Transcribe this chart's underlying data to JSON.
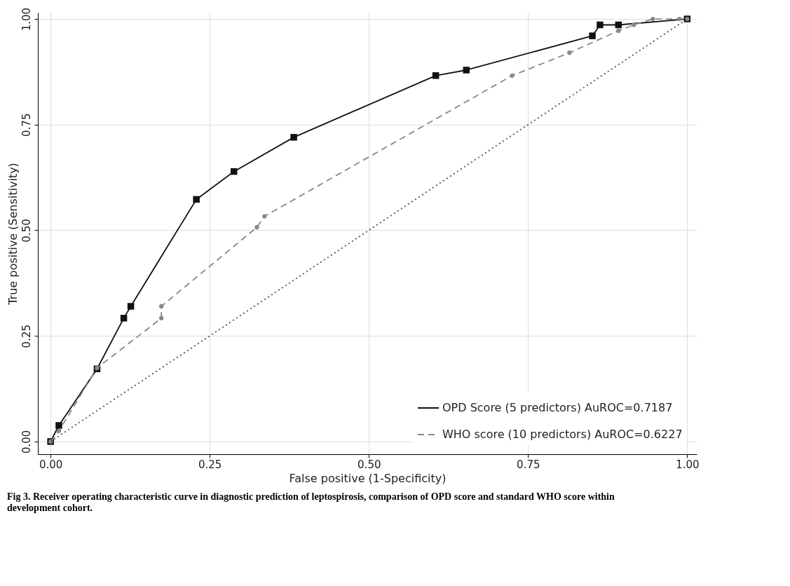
{
  "chart_data": {
    "type": "line",
    "xlabel": "False positive (1-Specificity)",
    "ylabel": "True positive (Sensitivity)",
    "xlim": [
      -0.02,
      1.015
    ],
    "ylim": [
      -0.03,
      1.015
    ],
    "xticks": [
      {
        "value": 0,
        "label": "0.00"
      },
      {
        "value": 0.25,
        "label": "0.25"
      },
      {
        "value": 0.5,
        "label": "0.50"
      },
      {
        "value": 0.75,
        "label": "0.75"
      },
      {
        "value": 1,
        "label": "1.00"
      }
    ],
    "yticks": [
      {
        "value": 0,
        "label": "0.00"
      },
      {
        "value": 0.25,
        "label": "0.25"
      },
      {
        "value": 0.5,
        "label": "0.50"
      },
      {
        "value": 0.75,
        "label": "0.75"
      },
      {
        "value": 1,
        "label": "1.00"
      }
    ],
    "grid": true,
    "legend": "bottom right",
    "series": [
      {
        "name": "OPD Score (5 predictors) AuROC=0.7187",
        "color": "#111111",
        "marker": "square",
        "line_style": "solid",
        "x": [
          0,
          0.013,
          0.073,
          0.115,
          0.126,
          0.229,
          0.288,
          0.382,
          0.605,
          0.653,
          0.851,
          0.863,
          0.892,
          1.0
        ],
        "values": [
          0,
          0.038,
          0.172,
          0.292,
          0.32,
          0.573,
          0.639,
          0.72,
          0.866,
          0.879,
          0.96,
          0.986,
          0.986,
          1.0
        ]
      },
      {
        "name": "WHO score (10 predictors) AuROC=0.6227",
        "color": "#888888",
        "marker": "circle",
        "line_style": "dashed",
        "x": [
          0,
          0.013,
          0.073,
          0.174,
          0.174,
          0.324,
          0.336,
          0.725,
          0.815,
          0.892,
          0.916,
          0.946,
          0.988,
          1.0
        ],
        "values": [
          0,
          0.025,
          0.174,
          0.292,
          0.32,
          0.507,
          0.533,
          0.866,
          0.92,
          0.972,
          0.986,
          1.0,
          1.0,
          1.0
        ]
      },
      {
        "color": "#505050",
        "marker": "none",
        "line_style": "dotted",
        "x": [
          0,
          1
        ],
        "values": [
          0,
          1
        ]
      }
    ],
    "annotations": [
      "Fig 3. Receiver operating characteristic curve in diagnostic prediction of leptospirosis, comparison of OPD score and standard WHO score within development cohort."
    ]
  }
}
